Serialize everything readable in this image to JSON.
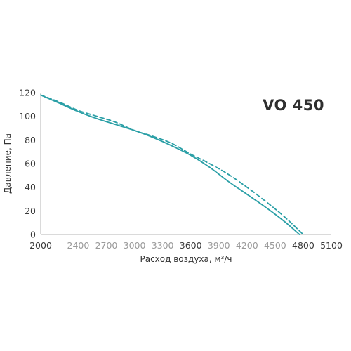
{
  "chart_data": {
    "type": "line",
    "title": "VO 450",
    "xlabel": "Расход воздуха, м³/ч",
    "ylabel": "Давление, Па",
    "xlim": [
      2000,
      5100
    ],
    "ylim": [
      0,
      120
    ],
    "x_ticks": [
      "2000",
      "2400",
      "2700",
      "3000",
      "3300",
      "3600",
      "3900",
      "4200",
      "4500",
      "4800",
      "5100"
    ],
    "x_tick_values": [
      2000,
      2400,
      2700,
      3000,
      3300,
      3600,
      3900,
      4200,
      4500,
      4800,
      5100
    ],
    "x_tick_emphasis": [
      true,
      false,
      false,
      false,
      false,
      true,
      false,
      false,
      false,
      true,
      true
    ],
    "y_ticks": [
      "0",
      "20",
      "40",
      "60",
      "80",
      "100",
      "120"
    ],
    "y_tick_values": [
      0,
      20,
      40,
      60,
      80,
      100,
      120
    ],
    "grid": false,
    "series": [
      {
        "style": "solid",
        "color": "#2a9fa6",
        "x": [
          2000,
          2200,
          2400,
          2600,
          2800,
          3000,
          3200,
          3400,
          3600,
          3800,
          4000,
          4200,
          4400,
          4600,
          4760
        ],
        "y": [
          118,
          111,
          104,
          98,
          93,
          88,
          82,
          75,
          67,
          57,
          45,
          34,
          23,
          11,
          0
        ]
      },
      {
        "style": "dashed",
        "color": "#2a9fa6",
        "x": [
          2000,
          2200,
          2400,
          2600,
          2800,
          3000,
          3200,
          3400,
          3600,
          3800,
          4000,
          4200,
          4400,
          4600,
          4800
        ],
        "y": [
          118,
          112,
          105,
          100,
          95,
          88,
          83,
          77,
          68,
          60,
          51,
          40,
          28,
          15,
          0
        ]
      }
    ]
  }
}
